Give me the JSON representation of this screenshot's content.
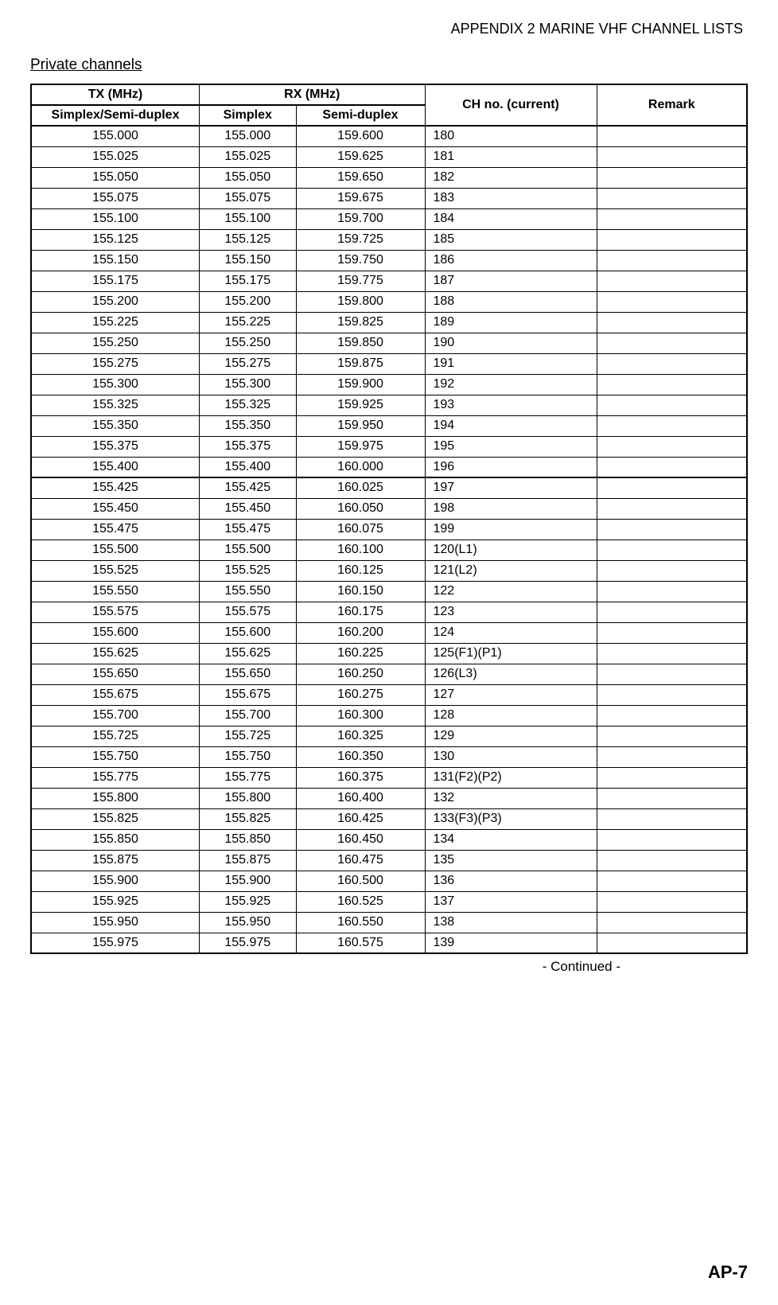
{
  "header": "APPENDIX 2 MARINE VHF CHANNEL LISTS",
  "section_title": "Private channels",
  "continued_label": "- Continued -",
  "page_number": "AP-7",
  "table": {
    "type": "table",
    "header_row1": {
      "tx": "TX (MHz)",
      "rx": "RX (MHz)",
      "ch": "CH no. (current)",
      "remark": "Remark"
    },
    "header_row2": {
      "tx_sub": "Simplex/Semi-duplex",
      "rx_simplex": "Simplex",
      "rx_semi": "Semi-duplex"
    },
    "columns": [
      "tx",
      "rx_simplex",
      "rx_semi",
      "ch",
      "remark"
    ],
    "column_align": [
      "center",
      "center",
      "center",
      "left",
      "left"
    ],
    "column_widths_pct": [
      23.5,
      13.5,
      18,
      24,
      21
    ],
    "border_color": "#000000",
    "background_color": "#ffffff",
    "text_color": "#000000",
    "font_size_pt": 12,
    "header_font_weight": "bold",
    "thick_border_after_row_index": 16,
    "rows": [
      [
        "155.000",
        "155.000",
        "159.600",
        "180",
        ""
      ],
      [
        "155.025",
        "155.025",
        "159.625",
        "181",
        ""
      ],
      [
        "155.050",
        "155.050",
        "159.650",
        "182",
        ""
      ],
      [
        "155.075",
        "155.075",
        "159.675",
        "183",
        ""
      ],
      [
        "155.100",
        "155.100",
        "159.700",
        "184",
        ""
      ],
      [
        "155.125",
        "155.125",
        "159.725",
        "185",
        ""
      ],
      [
        "155.150",
        "155.150",
        "159.750",
        "186",
        ""
      ],
      [
        "155.175",
        "155.175",
        "159.775",
        "187",
        ""
      ],
      [
        "155.200",
        "155.200",
        "159.800",
        "188",
        ""
      ],
      [
        "155.225",
        "155.225",
        "159.825",
        "189",
        ""
      ],
      [
        "155.250",
        "155.250",
        "159.850",
        "190",
        ""
      ],
      [
        "155.275",
        "155.275",
        "159.875",
        "191",
        ""
      ],
      [
        "155.300",
        "155.300",
        "159.900",
        "192",
        ""
      ],
      [
        "155.325",
        "155.325",
        "159.925",
        "193",
        ""
      ],
      [
        "155.350",
        "155.350",
        "159.950",
        "194",
        ""
      ],
      [
        "155.375",
        "155.375",
        "159.975",
        "195",
        ""
      ],
      [
        "155.400",
        "155.400",
        "160.000",
        "196",
        ""
      ],
      [
        "155.425",
        "155.425",
        "160.025",
        "197",
        ""
      ],
      [
        "155.450",
        "155.450",
        "160.050",
        "198",
        ""
      ],
      [
        "155.475",
        "155.475",
        "160.075",
        "199",
        ""
      ],
      [
        "155.500",
        "155.500",
        "160.100",
        "120(L1)",
        ""
      ],
      [
        "155.525",
        "155.525",
        "160.125",
        "121(L2)",
        ""
      ],
      [
        "155.550",
        "155.550",
        "160.150",
        "122",
        ""
      ],
      [
        "155.575",
        "155.575",
        "160.175",
        "123",
        ""
      ],
      [
        "155.600",
        "155.600",
        "160.200",
        "124",
        ""
      ],
      [
        "155.625",
        "155.625",
        "160.225",
        "125(F1)(P1)",
        ""
      ],
      [
        "155.650",
        "155.650",
        "160.250",
        "126(L3)",
        ""
      ],
      [
        "155.675",
        "155.675",
        "160.275",
        "127",
        ""
      ],
      [
        "155.700",
        "155.700",
        "160.300",
        "128",
        ""
      ],
      [
        "155.725",
        "155.725",
        "160.325",
        "129",
        ""
      ],
      [
        "155.750",
        "155.750",
        "160.350",
        "130",
        ""
      ],
      [
        "155.775",
        "155.775",
        "160.375",
        "131(F2)(P2)",
        ""
      ],
      [
        "155.800",
        "155.800",
        "160.400",
        "132",
        ""
      ],
      [
        "155.825",
        "155.825",
        "160.425",
        "133(F3)(P3)",
        ""
      ],
      [
        "155.850",
        "155.850",
        "160.450",
        "134",
        ""
      ],
      [
        "155.875",
        "155.875",
        "160.475",
        "135",
        ""
      ],
      [
        "155.900",
        "155.900",
        "160.500",
        "136",
        ""
      ],
      [
        "155.925",
        "155.925",
        "160.525",
        "137",
        ""
      ],
      [
        "155.950",
        "155.950",
        "160.550",
        "138",
        ""
      ],
      [
        "155.975",
        "155.975",
        "160.575",
        "139",
        ""
      ]
    ]
  }
}
